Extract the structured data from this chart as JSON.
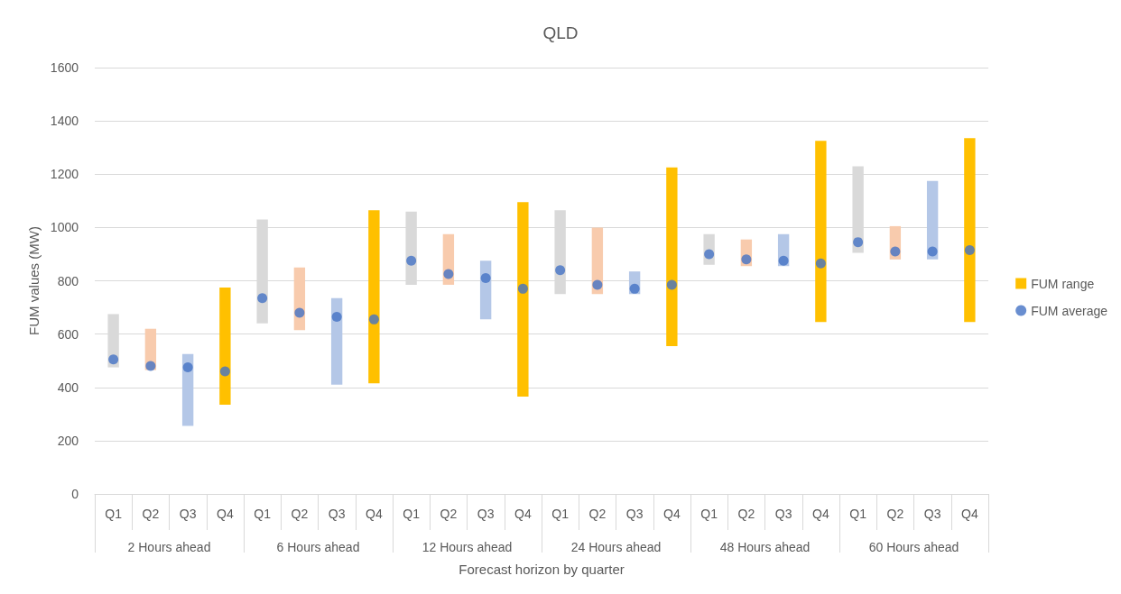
{
  "chart_data": {
    "type": "bar",
    "title": "QLD",
    "xlabel": "Forecast horizon by quarter",
    "ylabel": "FUM values (MW)",
    "categories": [
      "Q1",
      "Q2",
      "Q3",
      "Q4",
      "Q1",
      "Q2",
      "Q3",
      "Q4",
      "Q1",
      "Q2",
      "Q3",
      "Q4",
      "Q1",
      "Q2",
      "Q3",
      "Q4",
      "Q1",
      "Q2",
      "Q3",
      "Q4",
      "Q1",
      "Q2",
      "Q3",
      "Q4"
    ],
    "annotations": [
      "2 Hours ahead",
      "6 Hours ahead",
      "12 Hours ahead",
      "24 Hours ahead",
      "48 Hours ahead",
      "60 Hours ahead"
    ],
    "series": [
      {
        "name": "FUM range",
        "type": "bar",
        "color": "#ffc000",
        "colors": [
          "#d9d9d9",
          "#f8cbad",
          "#b4c7e7",
          "#ffc000",
          "#d9d9d9",
          "#f8cbad",
          "#b4c7e7",
          "#ffc000",
          "#d9d9d9",
          "#f8cbad",
          "#b4c7e7",
          "#ffc000",
          "#d9d9d9",
          "#f8cbad",
          "#b4c7e7",
          "#ffc000",
          "#d9d9d9",
          "#f8cbad",
          "#b4c7e7",
          "#ffc000",
          "#d9d9d9",
          "#f8cbad",
          "#b4c7e7",
          "#ffc000"
        ],
        "base": [
          475,
          465,
          255,
          335,
          640,
          615,
          410,
          415,
          785,
          785,
          655,
          365,
          750,
          750,
          750,
          555,
          860,
          855,
          855,
          645,
          905,
          880,
          880,
          645
        ],
        "values": [
          200,
          155,
          270,
          440,
          390,
          235,
          325,
          650,
          275,
          190,
          220,
          730,
          315,
          250,
          85,
          670,
          115,
          100,
          120,
          680,
          325,
          125,
          295,
          690
        ]
      },
      {
        "name": "FUM average",
        "type": "scatter",
        "color": "#4472c4",
        "marker": "circle",
        "values": [
          505,
          480,
          475,
          460,
          735,
          680,
          665,
          655,
          875,
          825,
          810,
          770,
          840,
          785,
          770,
          785,
          900,
          880,
          875,
          865,
          945,
          910,
          910,
          915
        ]
      }
    ],
    "ylim": [
      0,
      1600
    ],
    "yticks": [
      0,
      200,
      400,
      600,
      800,
      1000,
      1200,
      1400,
      1600
    ],
    "grid": "y",
    "legend": "right"
  }
}
